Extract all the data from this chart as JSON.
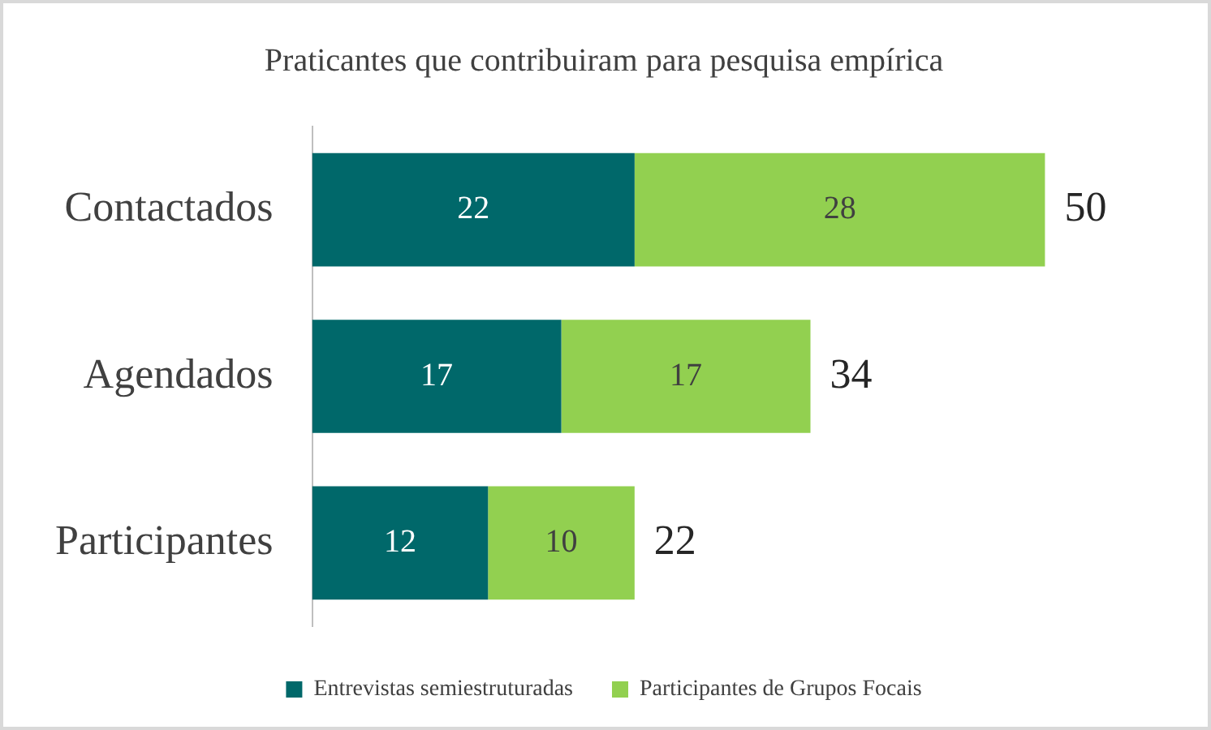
{
  "chart_data": {
    "type": "bar",
    "orientation": "horizontal",
    "stacked": true,
    "title": "Praticantes que contribuiram para pesquisa empírica",
    "categories": [
      "Contactados",
      "Agendados",
      "Participantes"
    ],
    "series": [
      {
        "name": "Entrevistas semiestruturadas",
        "color": "#00686a",
        "values": [
          22,
          17,
          12
        ]
      },
      {
        "name": "Participantes de Grupos Focais",
        "color": "#92d050",
        "values": [
          28,
          17,
          10
        ]
      }
    ],
    "data_labels": true,
    "totals": [
      "50",
      "34",
      "22"
    ],
    "legend": "bottom",
    "tick_labels": "y"
  }
}
